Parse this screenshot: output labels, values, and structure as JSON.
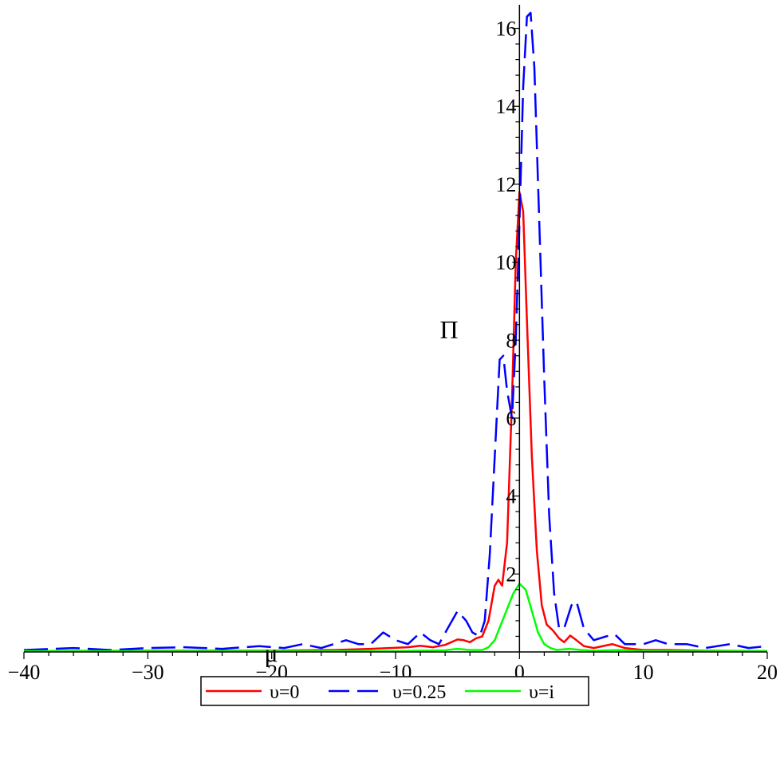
{
  "chart_data": {
    "type": "line",
    "title": "",
    "xlabel": "μ",
    "ylabel": "Π",
    "xlim": [
      -40,
      20
    ],
    "ylim": [
      0,
      16.4
    ],
    "x_ticks": [
      -40,
      -30,
      -20,
      -10,
      0,
      10,
      20
    ],
    "x_tick_labels": [
      "−40",
      "−30",
      "−20",
      "−10",
      "0",
      "10",
      "20"
    ],
    "y_ticks": [
      2,
      4,
      6,
      8,
      10,
      12,
      14,
      16
    ],
    "y_tick_labels": [
      "2",
      "4",
      "6",
      "8",
      "10",
      "12",
      "14",
      "16"
    ],
    "grid": false,
    "legend_position": "bottom-center",
    "series": [
      {
        "name": "υ=0",
        "color": "#ff0000",
        "dash": "solid",
        "points": [
          [
            -40,
            0.02
          ],
          [
            -30,
            0.03
          ],
          [
            -20,
            0.03
          ],
          [
            -15,
            0.05
          ],
          [
            -12,
            0.08
          ],
          [
            -9,
            0.12
          ],
          [
            -8,
            0.16
          ],
          [
            -7,
            0.12
          ],
          [
            -6,
            0.18
          ],
          [
            -5,
            0.32
          ],
          [
            -4.5,
            0.3
          ],
          [
            -4,
            0.25
          ],
          [
            -3.5,
            0.35
          ],
          [
            -3,
            0.4
          ],
          [
            -2.5,
            0.8
          ],
          [
            -2,
            1.7
          ],
          [
            -1.7,
            1.85
          ],
          [
            -1.4,
            1.7
          ],
          [
            -1,
            2.8
          ],
          [
            -0.6,
            6.5
          ],
          [
            -0.3,
            10
          ],
          [
            0,
            11.8
          ],
          [
            0.3,
            11.3
          ],
          [
            0.6,
            8.5
          ],
          [
            1,
            5
          ],
          [
            1.4,
            2.6
          ],
          [
            1.8,
            1.2
          ],
          [
            2.2,
            0.7
          ],
          [
            2.7,
            0.55
          ],
          [
            3.2,
            0.35
          ],
          [
            3.6,
            0.25
          ],
          [
            4.1,
            0.42
          ],
          [
            4.6,
            0.3
          ],
          [
            5.2,
            0.15
          ],
          [
            6,
            0.1
          ],
          [
            7.5,
            0.2
          ],
          [
            8.5,
            0.1
          ],
          [
            10,
            0.05
          ],
          [
            12,
            0.05
          ],
          [
            15,
            0.03
          ],
          [
            20,
            0.02
          ]
        ]
      },
      {
        "name": "υ=0.25",
        "color": "#0000ff",
        "dash": "long-dash",
        "points": [
          [
            -40,
            0.05
          ],
          [
            -36,
            0.1
          ],
          [
            -33,
            0.05
          ],
          [
            -30,
            0.1
          ],
          [
            -27,
            0.12
          ],
          [
            -24,
            0.08
          ],
          [
            -21,
            0.15
          ],
          [
            -19,
            0.1
          ],
          [
            -17.5,
            0.2
          ],
          [
            -16,
            0.1
          ],
          [
            -14,
            0.3
          ],
          [
            -13,
            0.2
          ],
          [
            -12,
            0.2
          ],
          [
            -11,
            0.5
          ],
          [
            -10,
            0.3
          ],
          [
            -9,
            0.2
          ],
          [
            -8,
            0.5
          ],
          [
            -7.2,
            0.3
          ],
          [
            -6.5,
            0.2
          ],
          [
            -5.8,
            0.6
          ],
          [
            -5,
            1.05
          ],
          [
            -4.3,
            0.8
          ],
          [
            -3.8,
            0.5
          ],
          [
            -3.2,
            0.4
          ],
          [
            -2.8,
            0.8
          ],
          [
            -2.4,
            2.5
          ],
          [
            -2,
            5
          ],
          [
            -1.6,
            7.5
          ],
          [
            -1.3,
            7.6
          ],
          [
            -1,
            6.7
          ],
          [
            -0.6,
            6
          ],
          [
            -0.3,
            8
          ],
          [
            0,
            11
          ],
          [
            0.3,
            14.5
          ],
          [
            0.6,
            16.3
          ],
          [
            0.9,
            16.4
          ],
          [
            1.2,
            15
          ],
          [
            1.6,
            11
          ],
          [
            2,
            7
          ],
          [
            2.4,
            3.5
          ],
          [
            2.8,
            1.5
          ],
          [
            3.2,
            0.6
          ],
          [
            3.6,
            0.6
          ],
          [
            4.2,
            1.2
          ],
          [
            4.6,
            1.3
          ],
          [
            5.2,
            0.6
          ],
          [
            6,
            0.3
          ],
          [
            7,
            0.4
          ],
          [
            7.7,
            0.45
          ],
          [
            8.5,
            0.2
          ],
          [
            10,
            0.2
          ],
          [
            11,
            0.3
          ],
          [
            12,
            0.2
          ],
          [
            13.5,
            0.2
          ],
          [
            15,
            0.1
          ],
          [
            17,
            0.2
          ],
          [
            18.5,
            0.1
          ],
          [
            20,
            0.15
          ]
        ]
      },
      {
        "name": "υ=i",
        "color": "#00ff00",
        "dash": "solid",
        "points": [
          [
            -40,
            0.02
          ],
          [
            -30,
            0.02
          ],
          [
            -20,
            0.02
          ],
          [
            -10,
            0.02
          ],
          [
            -6,
            0.04
          ],
          [
            -5,
            0.08
          ],
          [
            -4,
            0.05
          ],
          [
            -3,
            0.05
          ],
          [
            -2.5,
            0.12
          ],
          [
            -2,
            0.3
          ],
          [
            -1.5,
            0.7
          ],
          [
            -1,
            1.1
          ],
          [
            -0.5,
            1.5
          ],
          [
            0,
            1.75
          ],
          [
            0.5,
            1.6
          ],
          [
            1,
            1.05
          ],
          [
            1.5,
            0.5
          ],
          [
            2,
            0.2
          ],
          [
            2.5,
            0.1
          ],
          [
            3,
            0.05
          ],
          [
            4,
            0.08
          ],
          [
            5,
            0.05
          ],
          [
            6,
            0.03
          ],
          [
            8,
            0.05
          ],
          [
            10,
            0.02
          ],
          [
            20,
            0.02
          ]
        ]
      }
    ]
  }
}
